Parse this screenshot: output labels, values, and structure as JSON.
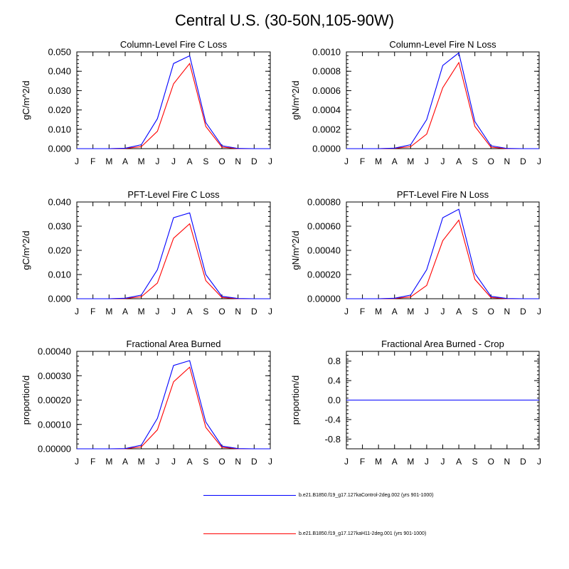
{
  "title": "Central U.S. (30-50N,105-90W)",
  "colors": {
    "series1": "#0000ff",
    "series2": "#ff0000",
    "axis": "#000000"
  },
  "legend": [
    {
      "label": "b.e21.B1850.f19_g17.127kaControl-2deg.002 (yrs 901-1000)",
      "color_key": "series1"
    },
    {
      "label": "b.e21.B1850.f19_g17.127kaH11-2deg.001 (yrs 901-1000)",
      "color_key": "series2"
    }
  ],
  "chart_data": [
    {
      "type": "line",
      "title": "Column-Level Fire C Loss",
      "ylabel": "gC/m^2/d",
      "categories": [
        "J",
        "F",
        "M",
        "A",
        "M",
        "J",
        "J",
        "A",
        "S",
        "O",
        "N",
        "D",
        "J"
      ],
      "ylim": [
        0,
        0.05
      ],
      "yticks": [
        0,
        0.01,
        0.02,
        0.03,
        0.04,
        0.05
      ],
      "ytick_labels": [
        "0.000",
        "0.010",
        "0.020",
        "0.030",
        "0.040",
        "0.050"
      ],
      "series": [
        {
          "name": "b.e21.B1850.f19_g17.127kaControl-2deg.002 (yrs 901-1000)",
          "color_key": "series1",
          "values": [
            0,
            0,
            0,
            0.0002,
            0.002,
            0.0155,
            0.044,
            0.048,
            0.0135,
            0.0015,
            0.0001,
            0,
            0
          ]
        },
        {
          "name": "b.e21.B1850.f19_g17.127kaH11-2deg.001 (yrs 901-1000)",
          "color_key": "series2",
          "values": [
            0,
            0,
            0,
            0.0001,
            0.001,
            0.009,
            0.0335,
            0.044,
            0.0115,
            0.0008,
            0,
            0,
            0
          ]
        }
      ]
    },
    {
      "type": "line",
      "title": "Column-Level Fire N Loss",
      "ylabel": "gN/m^2/d",
      "categories": [
        "J",
        "F",
        "M",
        "A",
        "M",
        "J",
        "J",
        "A",
        "S",
        "O",
        "N",
        "D",
        "J"
      ],
      "ylim": [
        0,
        0.001
      ],
      "yticks": [
        0,
        0.0002,
        0.0004,
        0.0006,
        0.0008,
        0.001
      ],
      "ytick_labels": [
        "0.0000",
        "0.0002",
        "0.0004",
        "0.0006",
        "0.0008",
        "0.0010"
      ],
      "series": [
        {
          "name": "b.e21.B1850.f19_g17.127kaControl-2deg.002 (yrs 901-1000)",
          "color_key": "series1",
          "values": [
            0,
            0,
            0,
            5e-06,
            4e-05,
            0.0003,
            0.00086,
            0.00099,
            0.00028,
            3e-05,
            2e-06,
            0,
            0
          ]
        },
        {
          "name": "b.e21.B1850.f19_g17.127kaH11-2deg.001 (yrs 901-1000)",
          "color_key": "series2",
          "values": [
            0,
            0,
            0,
            3e-06,
            2e-05,
            0.00015,
            0.00063,
            0.00089,
            0.00023,
            1.5e-05,
            0,
            0,
            0
          ]
        }
      ]
    },
    {
      "type": "line",
      "title": "PFT-Level Fire C Loss",
      "ylabel": "gC/m^2/d",
      "categories": [
        "J",
        "F",
        "M",
        "A",
        "M",
        "J",
        "J",
        "A",
        "S",
        "O",
        "N",
        "D",
        "J"
      ],
      "ylim": [
        0,
        0.04
      ],
      "yticks": [
        0,
        0.01,
        0.02,
        0.03,
        0.04
      ],
      "ytick_labels": [
        "0.000",
        "0.010",
        "0.020",
        "0.030",
        "0.040"
      ],
      "series": [
        {
          "name": "b.e21.B1850.f19_g17.127kaControl-2deg.002 (yrs 901-1000)",
          "color_key": "series1",
          "values": [
            0,
            0,
            0,
            0.0002,
            0.0015,
            0.012,
            0.0335,
            0.0355,
            0.01,
            0.001,
            0.0001,
            0,
            0
          ]
        },
        {
          "name": "b.e21.B1850.f19_g17.127kaH11-2deg.001 (yrs 901-1000)",
          "color_key": "series2",
          "values": [
            0,
            0,
            0,
            0.0001,
            0.0008,
            0.0065,
            0.025,
            0.031,
            0.0075,
            0.0005,
            0,
            0,
            0
          ]
        }
      ]
    },
    {
      "type": "line",
      "title": "PFT-Level Fire N Loss",
      "ylabel": "gN/m^2/d",
      "categories": [
        "J",
        "F",
        "M",
        "A",
        "M",
        "J",
        "J",
        "A",
        "S",
        "O",
        "N",
        "D",
        "J"
      ],
      "ylim": [
        0,
        0.0008
      ],
      "yticks": [
        0,
        0.0002,
        0.0004,
        0.0006,
        0.0008
      ],
      "ytick_labels": [
        "0.00000",
        "0.00020",
        "0.00040",
        "0.00060",
        "0.00080"
      ],
      "series": [
        {
          "name": "b.e21.B1850.f19_g17.127kaControl-2deg.002 (yrs 901-1000)",
          "color_key": "series1",
          "values": [
            0,
            0,
            0,
            4e-06,
            3e-05,
            0.00024,
            0.00067,
            0.00074,
            0.00021,
            2e-05,
            2e-06,
            0,
            0
          ]
        },
        {
          "name": "b.e21.B1850.f19_g17.127kaH11-2deg.001 (yrs 901-1000)",
          "color_key": "series2",
          "values": [
            0,
            0,
            0,
            2e-06,
            1.5e-05,
            0.00011,
            0.00048,
            0.00065,
            0.00016,
            1e-05,
            0,
            0,
            0
          ]
        }
      ]
    },
    {
      "type": "line",
      "title": "Fractional Area Burned",
      "ylabel": "proportion/d",
      "categories": [
        "J",
        "F",
        "M",
        "A",
        "M",
        "J",
        "J",
        "A",
        "S",
        "O",
        "N",
        "D",
        "J"
      ],
      "ylim": [
        0,
        0.0004
      ],
      "yticks": [
        0,
        0.0001,
        0.0002,
        0.0003,
        0.0004
      ],
      "ytick_labels": [
        "0.00000",
        "0.00010",
        "0.00020",
        "0.00030",
        "0.00040"
      ],
      "series": [
        {
          "name": "b.e21.B1850.f19_g17.127kaControl-2deg.002 (yrs 901-1000)",
          "color_key": "series1",
          "values": [
            0,
            0,
            0,
            1e-06,
            1.5e-05,
            0.000125,
            0.000342,
            0.000362,
            0.00011,
            1.1e-05,
            1e-06,
            0,
            0
          ]
        },
        {
          "name": "b.e21.B1850.f19_g17.127kaH11-2deg.001 (yrs 901-1000)",
          "color_key": "series2",
          "values": [
            0,
            0,
            0,
            0,
            8e-06,
            7.8e-05,
            0.000275,
            0.000335,
            8.8e-05,
            6e-06,
            0,
            0,
            0
          ]
        }
      ]
    },
    {
      "type": "line",
      "title": "Fractional Area Burned - Crop",
      "ylabel": "proportion/d",
      "categories": [
        "J",
        "F",
        "M",
        "A",
        "M",
        "J",
        "J",
        "A",
        "S",
        "O",
        "N",
        "D",
        "J"
      ],
      "ylim": [
        -1,
        1
      ],
      "yticks": [
        -0.8,
        -0.4,
        0,
        0.4,
        0.8
      ],
      "ytick_labels": [
        "-0.8",
        "-0.4",
        "0.0",
        "0.4",
        "0.8"
      ],
      "series": [
        {
          "name": "b.e21.B1850.f19_g17.127kaControl-2deg.002 (yrs 901-1000)",
          "color_key": "series1",
          "values": [
            0,
            0,
            0,
            0,
            0,
            0,
            0,
            0,
            0,
            0,
            0,
            0,
            0
          ]
        },
        {
          "name": "b.e21.B1850.f19_g17.127kaH11-2deg.001 (yrs 901-1000)",
          "color_key": "series2",
          "values": [
            0,
            0,
            0,
            0,
            0,
            0,
            0,
            0,
            0,
            0,
            0,
            0,
            0
          ]
        }
      ]
    }
  ]
}
